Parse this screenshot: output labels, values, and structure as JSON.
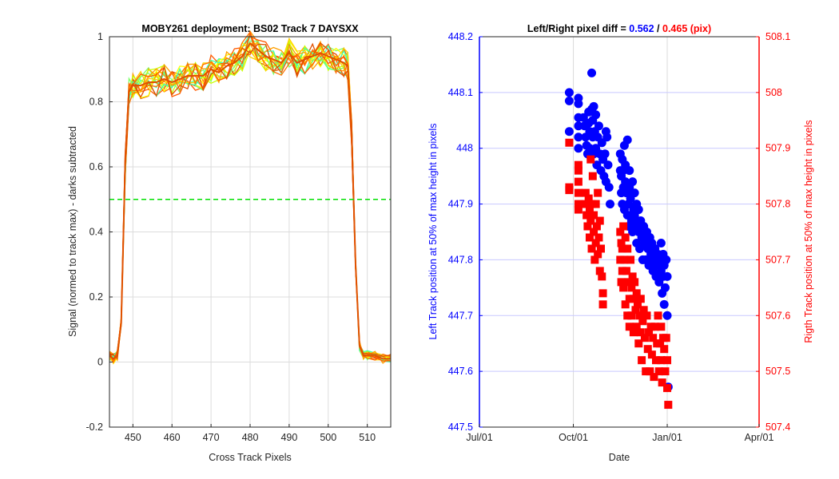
{
  "chart_data": [
    {
      "type": "line",
      "title": "MOBY261 deployment: BS02  Track 7 DAYSXX",
      "xlabel": "Cross Track Pixels",
      "ylabel": "Signal (normed to track max) - darks subtracted",
      "xlim": [
        444,
        516
      ],
      "ylim": [
        -0.2,
        1
      ],
      "xticks": [
        450,
        460,
        470,
        480,
        490,
        500,
        510
      ],
      "yticks": [
        -0.2,
        0,
        0.2,
        0.4,
        0.6,
        0.8,
        1
      ],
      "ytick_labels": [
        "-0.2",
        "0",
        "0.2",
        "0.4",
        "0.6",
        "0.8",
        "1"
      ],
      "grid": true,
      "reference_line": {
        "y": 0.5,
        "color": "#00e000",
        "style": "dashed"
      },
      "series_colors": [
        "#ffff00",
        "#c8ff00",
        "#7cff6a",
        "#40ffb0",
        "#ffd000",
        "#ffa000",
        "#ff7000",
        "#ff5a00",
        "#e05000"
      ],
      "x": [
        444,
        445,
        446,
        447,
        448,
        449,
        450,
        452,
        454,
        456,
        458,
        460,
        462,
        464,
        466,
        468,
        470,
        472,
        474,
        476,
        478,
        480,
        482,
        484,
        486,
        488,
        490,
        492,
        494,
        496,
        498,
        500,
        502,
        504,
        505,
        506,
        507,
        508,
        509,
        510,
        512,
        514,
        516
      ],
      "profile": [
        0.02,
        0.01,
        0.02,
        0.12,
        0.6,
        0.83,
        0.85,
        0.85,
        0.86,
        0.86,
        0.87,
        0.86,
        0.87,
        0.88,
        0.88,
        0.88,
        0.9,
        0.89,
        0.91,
        0.92,
        0.94,
        0.98,
        0.96,
        0.94,
        0.93,
        0.92,
        0.95,
        0.92,
        0.93,
        0.94,
        0.95,
        0.94,
        0.93,
        0.92,
        0.91,
        0.7,
        0.3,
        0.05,
        0.02,
        0.02,
        0.02,
        0.01,
        0.01
      ]
    },
    {
      "type": "scatter",
      "title_parts": [
        {
          "text": "Left/Right pixel diff = ",
          "color": "#000000"
        },
        {
          "text": "0.562",
          "color": "#0000ff"
        },
        {
          "text": " / ",
          "color": "#000000"
        },
        {
          "text": "0.465 (pix)",
          "color": "#ff0000"
        }
      ],
      "xlabel": "Date",
      "ylabel_left": "Left Track position at 50% of max height in pixels",
      "ylabel_right": "Rigth Track position at 50% of max height in pixels",
      "x_ticks": [
        "Jul/01",
        "Oct/01",
        "Jan/01",
        "Apr/01"
      ],
      "x_tick_days": [
        0,
        92,
        184,
        274
      ],
      "ylim_left": [
        447.5,
        448.2
      ],
      "yticks_left": [
        "447.5",
        "447.6",
        "447.7",
        "447.8",
        "447.9",
        "448",
        "448.1",
        "448.2"
      ],
      "ylim_right": [
        507.4,
        508.1
      ],
      "yticks_right": [
        "507.4",
        "507.5",
        "507.6",
        "507.7",
        "507.8",
        "507.9",
        "508",
        "508.1"
      ],
      "grid": true,
      "colors": {
        "left": "#0000ff",
        "right": "#ff0000"
      },
      "series": [
        {
          "axis": "left",
          "marker": "circle",
          "points": [
            [
              88,
              448.1
            ],
            [
              88,
              448.085
            ],
            [
              88,
              448.03
            ],
            [
              97,
              448.09
            ],
            [
              97,
              448.08
            ],
            [
              97,
              448.055
            ],
            [
              97,
              448.04
            ],
            [
              97,
              448.02
            ],
            [
              97,
              448.0
            ],
            [
              102,
              448.055
            ],
            [
              103,
              448.04
            ],
            [
              104,
              448.02
            ],
            [
              105,
              448.005
            ],
            [
              106,
              447.99
            ],
            [
              107,
              448.065
            ],
            [
              107,
              448.045
            ],
            [
              108,
              448.03
            ],
            [
              108,
              448.0
            ],
            [
              109,
              447.985
            ],
            [
              110,
              448.135
            ],
            [
              110,
              448.07
            ],
            [
              111,
              448.05
            ],
            [
              111,
              448.02
            ],
            [
              112,
              448.075
            ],
            [
              112,
              447.99
            ],
            [
              113,
              448.03
            ],
            [
              114,
              448.06
            ],
            [
              114,
              448.0
            ],
            [
              115,
              447.97
            ],
            [
              116,
              448.02
            ],
            [
              117,
              448.04
            ],
            [
              118,
              447.99
            ],
            [
              119,
              447.96
            ],
            [
              120,
              448.01
            ],
            [
              121,
              447.98
            ],
            [
              122,
              447.95
            ],
            [
              123,
              447.99
            ],
            [
              124,
              448.03
            ],
            [
              124,
              447.94
            ],
            [
              125,
              448.02
            ],
            [
              126,
              447.97
            ],
            [
              127,
              447.93
            ],
            [
              128,
              447.9
            ],
            [
              138,
              447.99
            ],
            [
              138,
              447.96
            ],
            [
              139,
              447.95
            ],
            [
              139,
              447.92
            ],
            [
              140,
              447.98
            ],
            [
              140,
              447.9
            ],
            [
              141,
              447.96
            ],
            [
              141,
              447.93
            ],
            [
              142,
              447.89
            ],
            [
              142,
              448.005
            ],
            [
              143,
              447.97
            ],
            [
              143,
              447.94
            ],
            [
              144,
              447.92
            ],
            [
              145,
              448.015
            ],
            [
              145,
              447.88
            ],
            [
              146,
              447.9
            ],
            [
              146,
              447.86
            ],
            [
              147,
              447.96
            ],
            [
              147,
              447.93
            ],
            [
              148,
              447.91
            ],
            [
              149,
              447.87
            ],
            [
              150,
              447.94
            ],
            [
              150,
              447.85
            ],
            [
              151,
              447.89
            ],
            [
              152,
              447.92
            ],
            [
              152,
              447.88
            ],
            [
              153,
              447.86
            ],
            [
              154,
              447.9
            ],
            [
              154,
              447.83
            ],
            [
              155,
              447.87
            ],
            [
              156,
              447.89
            ],
            [
              156,
              447.85
            ],
            [
              157,
              447.82
            ],
            [
              158,
              447.87
            ],
            [
              159,
              447.84
            ],
            [
              160,
              447.8
            ],
            [
              161,
              447.86
            ],
            [
              162,
              447.83
            ],
            [
              163,
              447.8
            ],
            [
              164,
              447.85
            ],
            [
              165,
              447.82
            ],
            [
              166,
              447.79
            ],
            [
              167,
              447.84
            ],
            [
              168,
              447.81
            ],
            [
              169,
              447.83
            ],
            [
              170,
              447.78
            ],
            [
              171,
              447.8
            ],
            [
              172,
              447.82
            ],
            [
              173,
              447.77
            ],
            [
              174,
              447.79
            ],
            [
              175,
              447.81
            ],
            [
              176,
              447.76
            ],
            [
              177,
              447.8
            ],
            [
              178,
              447.83
            ],
            [
              178,
              447.78
            ],
            [
              179,
              447.74
            ],
            [
              180,
              447.81
            ],
            [
              180,
              447.77
            ],
            [
              181,
              447.72
            ],
            [
              181,
              447.79
            ],
            [
              182,
              447.75
            ],
            [
              183,
              447.8
            ],
            [
              184,
              447.77
            ],
            [
              184,
              447.7
            ],
            [
              185,
              447.572
            ]
          ]
        },
        {
          "axis": "right",
          "marker": "square",
          "points": [
            [
              88,
              507.91
            ],
            [
              88,
              507.83
            ],
            [
              88,
              507.825
            ],
            [
              97,
              507.87
            ],
            [
              97,
              507.86
            ],
            [
              97,
              507.84
            ],
            [
              97,
              507.82
            ],
            [
              97,
              507.8
            ],
            [
              97,
              507.79
            ],
            [
              104,
              507.82
            ],
            [
              104,
              507.8
            ],
            [
              105,
              507.78
            ],
            [
              106,
              507.76
            ],
            [
              107,
              507.81
            ],
            [
              108,
              507.79
            ],
            [
              108,
              507.74
            ],
            [
              109,
              507.88
            ],
            [
              109,
              507.77
            ],
            [
              110,
              507.8
            ],
            [
              110,
              507.72
            ],
            [
              111,
              507.85
            ],
            [
              112,
              507.78
            ],
            [
              112,
              507.75
            ],
            [
              113,
              507.7
            ],
            [
              114,
              507.8
            ],
            [
              114,
              507.73
            ],
            [
              115,
              507.76
            ],
            [
              116,
              507.82
            ],
            [
              116,
              507.71
            ],
            [
              117,
              507.74
            ],
            [
              118,
              507.77
            ],
            [
              118,
              507.68
            ],
            [
              119,
              507.72
            ],
            [
              120,
              507.67
            ],
            [
              121,
              507.64
            ],
            [
              121,
              507.62
            ],
            [
              138,
              507.75
            ],
            [
              138,
              507.7
            ],
            [
              139,
              507.73
            ],
            [
              139,
              507.66
            ],
            [
              140,
              507.72
            ],
            [
              140,
              507.68
            ],
            [
              141,
              507.76
            ],
            [
              141,
              507.65
            ],
            [
              142,
              507.7
            ],
            [
              143,
              507.74
            ],
            [
              143,
              507.62
            ],
            [
              144,
              507.68
            ],
            [
              145,
              507.72
            ],
            [
              145,
              507.6
            ],
            [
              146,
              507.66
            ],
            [
              147,
              507.63
            ],
            [
              147,
              507.58
            ],
            [
              148,
              507.7
            ],
            [
              149,
              507.65
            ],
            [
              149,
              507.6
            ],
            [
              150,
              507.67
            ],
            [
              151,
              507.63
            ],
            [
              151,
              507.57
            ],
            [
              152,
              507.66
            ],
            [
              153,
              507.61
            ],
            [
              154,
              507.64
            ],
            [
              154,
              507.58
            ],
            [
              155,
              507.62
            ],
            [
              156,
              507.55
            ],
            [
              157,
              507.6
            ],
            [
              158,
              507.63
            ],
            [
              158,
              507.57
            ],
            [
              159,
              507.52
            ],
            [
              160,
              507.59
            ],
            [
              161,
              507.61
            ],
            [
              162,
              507.56
            ],
            [
              163,
              507.5
            ],
            [
              164,
              507.6
            ],
            [
              165,
              507.54
            ],
            [
              166,
              507.57
            ],
            [
              167,
              507.5
            ],
            [
              168,
              507.58
            ],
            [
              169,
              507.53
            ],
            [
              170,
              507.56
            ],
            [
              171,
              507.49
            ],
            [
              172,
              507.58
            ],
            [
              173,
              507.52
            ],
            [
              174,
              507.55
            ],
            [
              175,
              507.6
            ],
            [
              176,
              507.5
            ],
            [
              177,
              507.55
            ],
            [
              178,
              507.58
            ],
            [
              178,
              507.52
            ],
            [
              179,
              507.48
            ],
            [
              180,
              507.56
            ],
            [
              181,
              507.54
            ],
            [
              182,
              507.5
            ],
            [
              183,
              507.56
            ],
            [
              184,
              507.52
            ],
            [
              184,
              507.47
            ],
            [
              185,
              507.44
            ]
          ]
        }
      ]
    }
  ]
}
